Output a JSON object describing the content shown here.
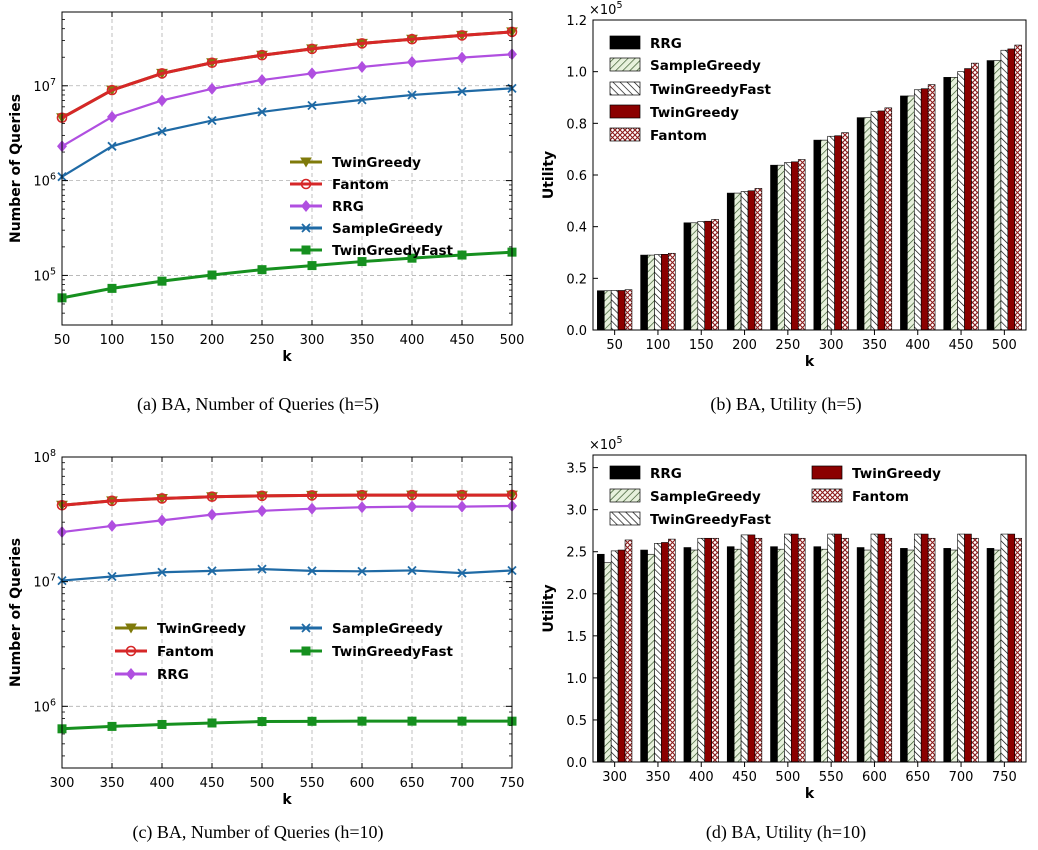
{
  "colors": {
    "TwinGreedy": "#7f7a0b",
    "Fantom": "#d62728",
    "RRG": "#b04fe0",
    "SampleGreedy": "#1f6aa5",
    "TwinGreedyFast": "#16901f",
    "grid": "#b0b0b0"
  },
  "chart_data": [
    {
      "type": "line",
      "caption": "(a) BA, Number of Queries (h=5)",
      "xlabel": "k",
      "ylabel": "Number of Queries",
      "yscale": "log",
      "ylim": [
        30000,
        60000000
      ],
      "xlim": [
        50,
        500
      ],
      "x": [
        50,
        100,
        150,
        200,
        250,
        300,
        350,
        400,
        450,
        500
      ],
      "xticks": [
        "50",
        "100",
        "150",
        "200",
        "250",
        "300",
        "350",
        "400",
        "450",
        "500"
      ],
      "yticks": [
        {
          "value": 100000,
          "base": "10",
          "exp": "5"
        },
        {
          "value": 1000000,
          "base": "10",
          "exp": "6"
        },
        {
          "value": 10000000,
          "base": "10",
          "exp": "7"
        }
      ],
      "grid": true,
      "legend_position": "center-right",
      "series": [
        {
          "name": "TwinGreedy",
          "marker": "triangle-down",
          "color_key": "TwinGreedy",
          "values": [
            4600000,
            9000000,
            13500000,
            17500000,
            21000000,
            24500000,
            28000000,
            31000000,
            34000000,
            37000000
          ]
        },
        {
          "name": "Fantom",
          "marker": "circle-open",
          "color_key": "Fantom",
          "values": [
            4600000,
            9000000,
            13500000,
            17500000,
            21000000,
            24500000,
            28000000,
            31000000,
            34000000,
            37000000
          ]
        },
        {
          "name": "RRG",
          "marker": "diamond",
          "color_key": "RRG",
          "values": [
            2300000,
            4700000,
            7000000,
            9300000,
            11500000,
            13500000,
            15800000,
            17800000,
            19800000,
            21500000
          ]
        },
        {
          "name": "SampleGreedy",
          "marker": "x",
          "color_key": "SampleGreedy",
          "values": [
            1100000,
            2300000,
            3300000,
            4300000,
            5300000,
            6200000,
            7100000,
            8000000,
            8700000,
            9400000
          ]
        },
        {
          "name": "TwinGreedyFast",
          "marker": "square",
          "color_key": "TwinGreedyFast",
          "values": [
            58000,
            73000,
            87000,
            101000,
            115000,
            127000,
            140000,
            152000,
            164000,
            176000
          ]
        }
      ]
    },
    {
      "type": "bar",
      "caption": "(b) BA, Utility (h=5)",
      "xlabel": "k",
      "ylabel": "Utility",
      "scale_note_base": "×10",
      "scale_note_exp": "5",
      "ylim": [
        0,
        1.2
      ],
      "yticks": [
        "0.0",
        "0.2",
        "0.4",
        "0.6",
        "0.8",
        "1.0",
        "1.2"
      ],
      "categories": [
        "50",
        "100",
        "150",
        "200",
        "250",
        "300",
        "350",
        "400",
        "450",
        "500"
      ],
      "legend_position": "top-left",
      "series": [
        {
          "name": "RRG",
          "pattern": "solid-black",
          "values": [
            0.152,
            0.29,
            0.415,
            0.53,
            0.638,
            0.735,
            0.822,
            0.906,
            0.978,
            1.043
          ]
        },
        {
          "name": "SampleGreedy",
          "pattern": "hatch-green",
          "values": [
            0.152,
            0.29,
            0.415,
            0.53,
            0.638,
            0.735,
            0.822,
            0.906,
            0.978,
            1.043
          ]
        },
        {
          "name": "TwinGreedyFast",
          "pattern": "hatch-black",
          "values": [
            0.153,
            0.292,
            0.42,
            0.536,
            0.648,
            0.75,
            0.845,
            0.93,
            1.0,
            1.083
          ]
        },
        {
          "name": "TwinGreedy",
          "pattern": "solid-darkred",
          "values": [
            0.153,
            0.293,
            0.421,
            0.539,
            0.651,
            0.752,
            0.848,
            0.934,
            1.012,
            1.088
          ]
        },
        {
          "name": "Fantom",
          "pattern": "crosshatch-red",
          "values": [
            0.156,
            0.297,
            0.428,
            0.548,
            0.66,
            0.764,
            0.86,
            0.95,
            1.033,
            1.103
          ]
        }
      ]
    },
    {
      "type": "line",
      "caption": "(c) BA, Number of Queries (h=10)",
      "xlabel": "k",
      "ylabel": "Number of Queries",
      "yscale": "log",
      "ylim": [
        320000,
        100000000
      ],
      "xlim": [
        300,
        750
      ],
      "x": [
        300,
        350,
        400,
        450,
        500,
        550,
        600,
        650,
        700,
        750
      ],
      "xticks": [
        "300",
        "350",
        "400",
        "450",
        "500",
        "550",
        "600",
        "650",
        "700",
        "750"
      ],
      "yticks": [
        {
          "value": 1000000,
          "base": "10",
          "exp": "6"
        },
        {
          "value": 10000000,
          "base": "10",
          "exp": "7"
        },
        {
          "value": 100000000,
          "base": "10",
          "exp": "8"
        }
      ],
      "grid": true,
      "legend_position": "lower-center",
      "series": [
        {
          "name": "TwinGreedy",
          "marker": "triangle-down",
          "color_key": "TwinGreedy",
          "values": [
            41000000,
            44500000,
            46500000,
            48000000,
            48800000,
            49200000,
            49400000,
            49500000,
            49500000,
            49500000
          ]
        },
        {
          "name": "Fantom",
          "marker": "circle-open",
          "color_key": "Fantom",
          "values": [
            41000000,
            44500000,
            46500000,
            48000000,
            48800000,
            49200000,
            49400000,
            49500000,
            49500000,
            49500000
          ]
        },
        {
          "name": "RRG",
          "marker": "diamond",
          "color_key": "RRG",
          "values": [
            25000000,
            28000000,
            31000000,
            34500000,
            37000000,
            38500000,
            39500000,
            40000000,
            40000000,
            40500000
          ]
        },
        {
          "name": "SampleGreedy",
          "marker": "x",
          "color_key": "SampleGreedy",
          "values": [
            10200000,
            11000000,
            11900000,
            12200000,
            12600000,
            12200000,
            12100000,
            12300000,
            11700000,
            12300000
          ]
        },
        {
          "name": "TwinGreedyFast",
          "marker": "square",
          "color_key": "TwinGreedyFast",
          "values": [
            660000,
            690000,
            715000,
            735000,
            755000,
            758000,
            760000,
            760000,
            760000,
            760000
          ]
        }
      ]
    },
    {
      "type": "bar",
      "caption": "(d) BA, Utility (h=10)",
      "xlabel": "k",
      "ylabel": "Utility",
      "scale_note_base": "×10",
      "scale_note_exp": "5",
      "ylim": [
        0,
        3.65
      ],
      "yticks": [
        "0.0",
        "0.5",
        "1.0",
        "1.5",
        "2.0",
        "2.5",
        "3.0",
        "3.5"
      ],
      "categories": [
        "300",
        "350",
        "400",
        "450",
        "500",
        "550",
        "600",
        "650",
        "700",
        "750"
      ],
      "legend_position": "top",
      "series": [
        {
          "name": "RRG",
          "pattern": "solid-black",
          "values": [
            2.47,
            2.52,
            2.55,
            2.56,
            2.56,
            2.56,
            2.55,
            2.54,
            2.54,
            2.54
          ]
        },
        {
          "name": "SampleGreedy",
          "pattern": "hatch-green",
          "values": [
            2.37,
            2.47,
            2.52,
            2.53,
            2.53,
            2.53,
            2.52,
            2.52,
            2.52,
            2.52
          ]
        },
        {
          "name": "TwinGreedyFast",
          "pattern": "hatch-black",
          "values": [
            2.51,
            2.6,
            2.66,
            2.7,
            2.71,
            2.71,
            2.71,
            2.71,
            2.71,
            2.71
          ]
        },
        {
          "name": "TwinGreedy",
          "pattern": "solid-darkred",
          "values": [
            2.52,
            2.61,
            2.66,
            2.7,
            2.71,
            2.71,
            2.71,
            2.71,
            2.71,
            2.71
          ]
        },
        {
          "name": "Fantom",
          "pattern": "crosshatch-red",
          "values": [
            2.64,
            2.65,
            2.66,
            2.66,
            2.66,
            2.66,
            2.66,
            2.66,
            2.66,
            2.66
          ]
        }
      ]
    }
  ]
}
